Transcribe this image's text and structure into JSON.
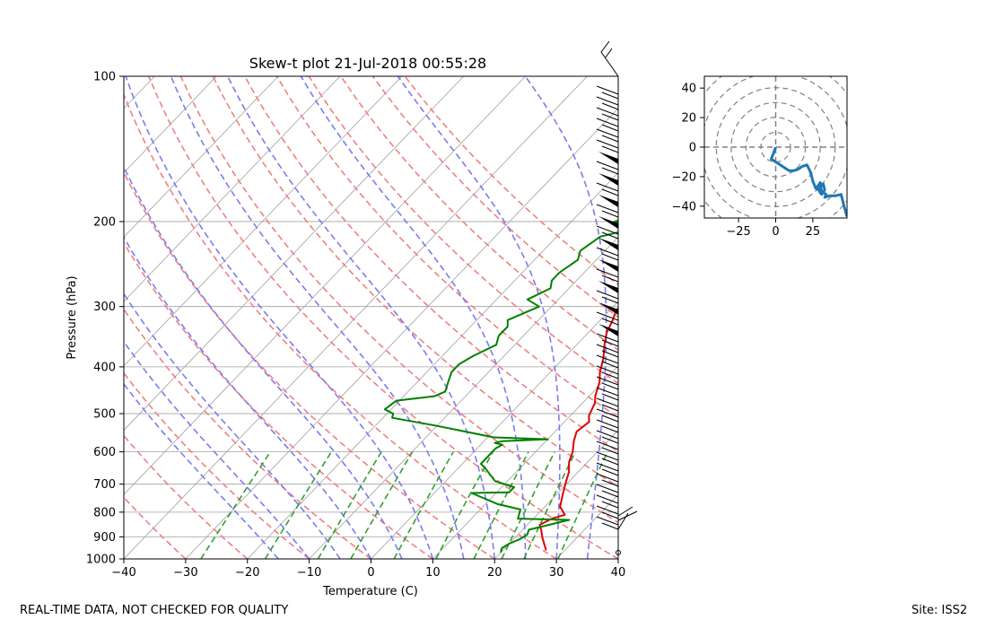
{
  "footer": {
    "left": "REAL-TIME DATA, NOT CHECKED FOR QUALITY",
    "right": "Site: ISS2"
  },
  "chart_data": [
    {
      "type": "line",
      "title": "Skew-t plot 21-Jul-2018 00:55:28",
      "xlabel": "Temperature (C)",
      "ylabel": "Pressure (hPa)",
      "xlim": [
        -40,
        40
      ],
      "ylim": [
        1000,
        100
      ],
      "yscale": "log",
      "xticks": [
        -40,
        -30,
        -20,
        -10,
        0,
        10,
        20,
        30,
        40
      ],
      "yticks": [
        100,
        200,
        300,
        400,
        500,
        600,
        700,
        800,
        900,
        1000
      ],
      "grid": true,
      "reference_lines": {
        "dry_adiabats_color": "#f08080",
        "moist_adiabats_color": "#7b7bf0",
        "mixing_ratio_color": "#33a033",
        "isotherm_color": "#a0a0a0"
      },
      "series": [
        {
          "color": "#e00000",
          "x": [
            27,
            24.5,
            23,
            22,
            23,
            24.5,
            22.5,
            21.5,
            20.5,
            19.5,
            18.5,
            17,
            16,
            14.5,
            13.5,
            14,
            13,
            12,
            11,
            9.5,
            8,
            6.5,
            4.5,
            3,
            2,
            1,
            1.5,
            1.2,
            0.7,
            0.5,
            0.2,
            -0.5,
            -0.3,
            -0.6,
            -0.5,
            -0.8,
            -1,
            0,
            1,
            1.5,
            1.2,
            1.5,
            1.8,
            2,
            2.5,
            4,
            5,
            6,
            6.5,
            6.3,
            6.5
          ],
          "y": [
            960,
            905,
            870,
            850,
            825,
            810,
            780,
            750,
            720,
            690,
            660,
            630,
            600,
            570,
            545,
            520,
            505,
            475,
            460,
            430,
            410,
            385,
            360,
            340,
            320,
            305,
            290,
            275,
            260,
            245,
            230,
            215,
            200,
            190,
            180,
            172,
            166,
            162,
            155,
            145,
            138,
            130,
            125,
            120,
            116,
            112,
            108,
            104,
            102,
            101,
            100
          ]
        },
        {
          "color": "#008000",
          "x": [
            20,
            19.5,
            20,
            21,
            21.5,
            21,
            26,
            17.5,
            16.5,
            12,
            6,
            12,
            12,
            8,
            4.5,
            3,
            3,
            3,
            3.5,
            2,
            3,
            10,
            1,
            -10,
            -18.5,
            -19,
            -21,
            -20.5,
            -15,
            -14,
            -15,
            -16,
            -16,
            -15,
            -13,
            -14,
            -14,
            -15,
            -12,
            -15,
            -13,
            -14,
            -14,
            -13,
            -14,
            -13,
            -8,
            -13,
            -9,
            -12,
            -12.5,
            -13,
            -11,
            -13,
            -12,
            -12.5,
            -12.5,
            -11,
            -11,
            -10,
            -9,
            -6,
            -5,
            -3,
            -2
          ],
          "y": [
            970,
            950,
            930,
            910,
            890,
            870,
            830,
            825,
            790,
            770,
            730,
            728,
            710,
            690,
            650,
            635,
            610,
            590,
            580,
            575,
            570,
            565,
            560,
            530,
            510,
            500,
            490,
            470,
            460,
            450,
            430,
            410,
            395,
            380,
            360,
            345,
            330,
            320,
            300,
            290,
            275,
            265,
            255,
            240,
            230,
            215,
            205,
            200,
            190,
            180,
            170,
            165,
            158,
            150,
            143,
            135,
            128,
            125,
            122,
            118,
            113,
            109,
            105,
            102,
            100
          ]
        }
      ]
    },
    {
      "type": "line",
      "title": "",
      "xlim": [
        -48,
        48
      ],
      "ylim": [
        -48,
        48
      ],
      "xticks": [
        -25,
        0,
        25
      ],
      "yticks": [
        -40,
        -20,
        0,
        20,
        40
      ],
      "rings": [
        10,
        20,
        30,
        40,
        50,
        60
      ],
      "series": [
        {
          "color": "#1f77b4",
          "x": [
            0,
            -1,
            -3,
            0,
            3,
            6,
            9,
            12,
            15,
            18,
            21,
            23,
            24,
            25,
            27,
            29,
            31,
            30,
            28,
            30,
            31,
            33,
            32,
            30,
            31,
            34,
            33,
            36,
            40,
            44,
            46,
            48
          ],
          "y": [
            0,
            -3,
            -8,
            -10,
            -12,
            -14,
            -16,
            -16,
            -15,
            -13,
            -12,
            -16,
            -19,
            -23,
            -28,
            -29,
            -26,
            -24,
            -27,
            -31,
            -32,
            -29,
            -25,
            -26,
            -30,
            -32,
            -34,
            -33,
            -33,
            -32,
            -40,
            -47
          ]
        }
      ]
    }
  ]
}
